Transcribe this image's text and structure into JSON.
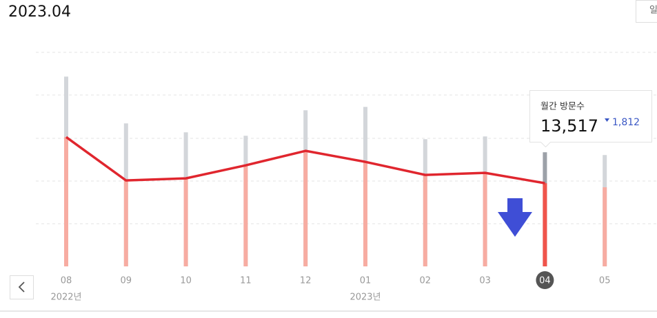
{
  "header": {
    "title": "2023.04",
    "button": "일"
  },
  "chart_data": {
    "type": "bar-line",
    "categories": [
      "08",
      "09",
      "10",
      "11",
      "12",
      "01",
      "02",
      "03",
      "04",
      "05"
    ],
    "year_labels": [
      {
        "index": 0,
        "label": "2022년"
      },
      {
        "index": 5,
        "label": "2023년"
      }
    ],
    "ylim": [
      0,
      35000
    ],
    "highlight": 8,
    "series": [
      {
        "kind": "bar",
        "color": "#d3d6da",
        "highlight_color": "#9ca1a8",
        "values": [
          30830,
          23230,
          21780,
          21220,
          25360,
          25910,
          20660,
          21110,
          18540,
          18090
        ]
      },
      {
        "kind": "bar",
        "color": "#f7aca2",
        "highlight_color": "#f0544b",
        "values": [
          21000,
          13960,
          14300,
          16420,
          18770,
          16980,
          14860,
          15190,
          13517,
          12850
        ]
      },
      {
        "kind": "line",
        "color": "#e0262e",
        "values": [
          21000,
          13960,
          14300,
          16420,
          18770,
          16980,
          14860,
          15190,
          13517,
          null
        ]
      }
    ]
  },
  "tooltip": {
    "label": "월간 방문수",
    "value": 13517,
    "value_label": "13,517",
    "change": 1812,
    "change_label": "1,812"
  }
}
